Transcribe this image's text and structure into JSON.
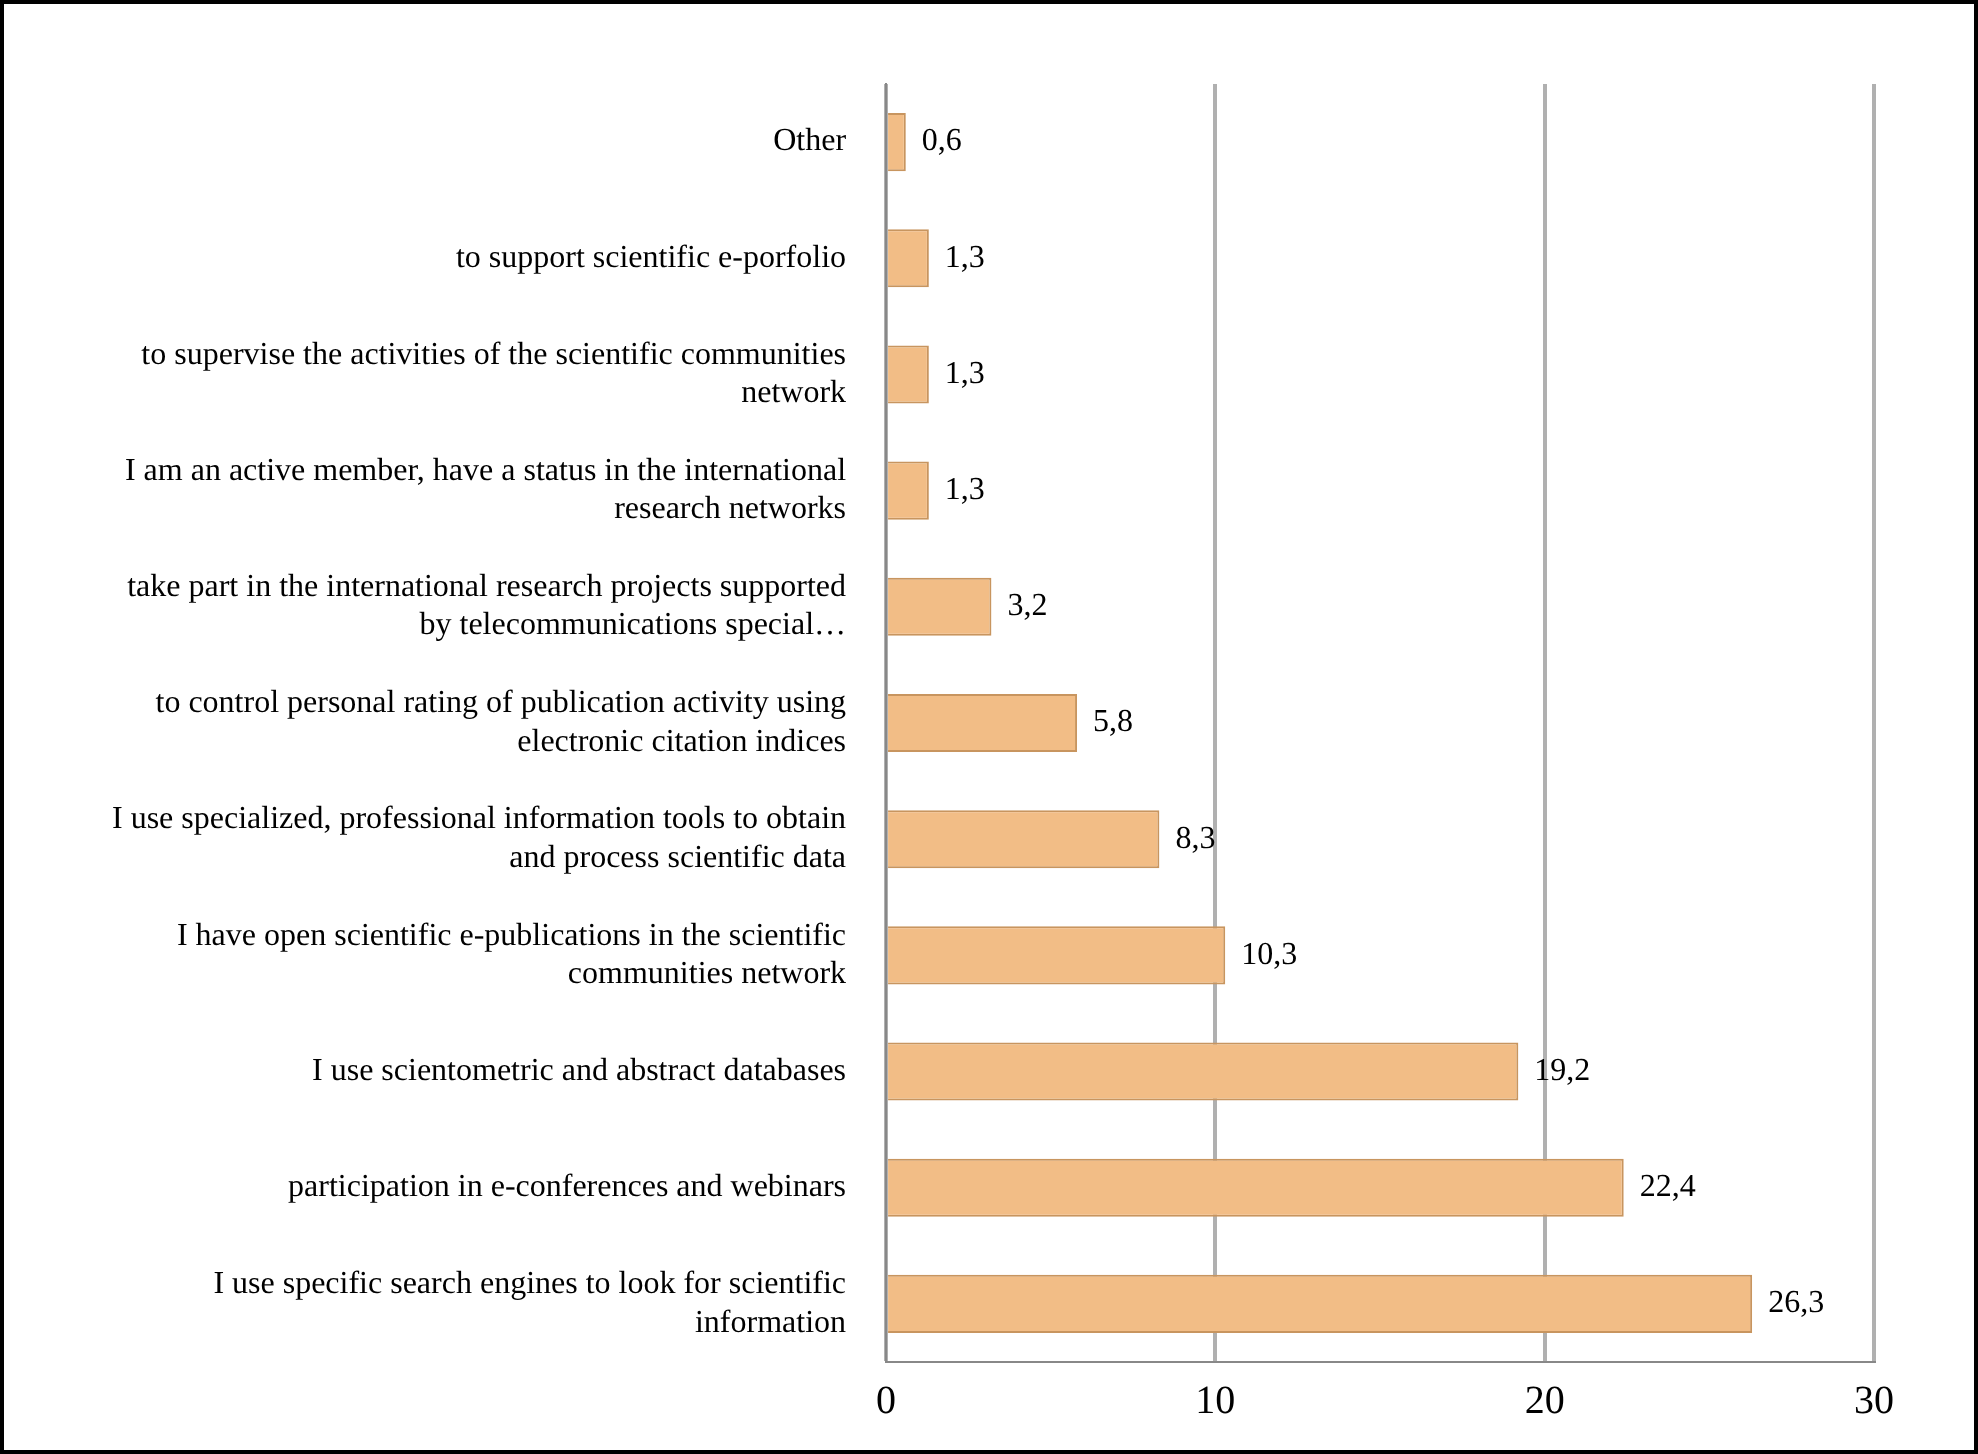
{
  "chart_data": {
    "type": "bar",
    "orientation": "horizontal",
    "categories": [
      "Other",
      "to support scientific e-porfolio",
      "to supervise the activities of the scientific communities network",
      "I am an active member, have a status in the international research networks",
      "take part in the international research projects supported by telecommunications special…",
      "to control personal rating of publication activity using electronic citation indices",
      "I use specialized, professional information tools to obtain and process scientific data",
      "I have open scientific e-publications in the scientific communities network",
      "I use scientometric and abstract databases",
      "participation in e-conferences and webinars",
      "I use specific search engines to look for scientific information"
    ],
    "values": [
      0.6,
      1.3,
      1.3,
      1.3,
      3.2,
      5.8,
      8.3,
      10.3,
      19.2,
      22.4,
      26.3
    ],
    "value_labels": [
      "0,6",
      "1,3",
      "1,3",
      "1,3",
      "3,2",
      "5,8",
      "8,3",
      "10,3",
      "19,2",
      "22,4",
      "26,3"
    ],
    "color": "#f2bd86",
    "xlim": [
      0,
      30
    ],
    "xticks": [
      0,
      10,
      20,
      30
    ],
    "grid": "x",
    "legend": false
  }
}
